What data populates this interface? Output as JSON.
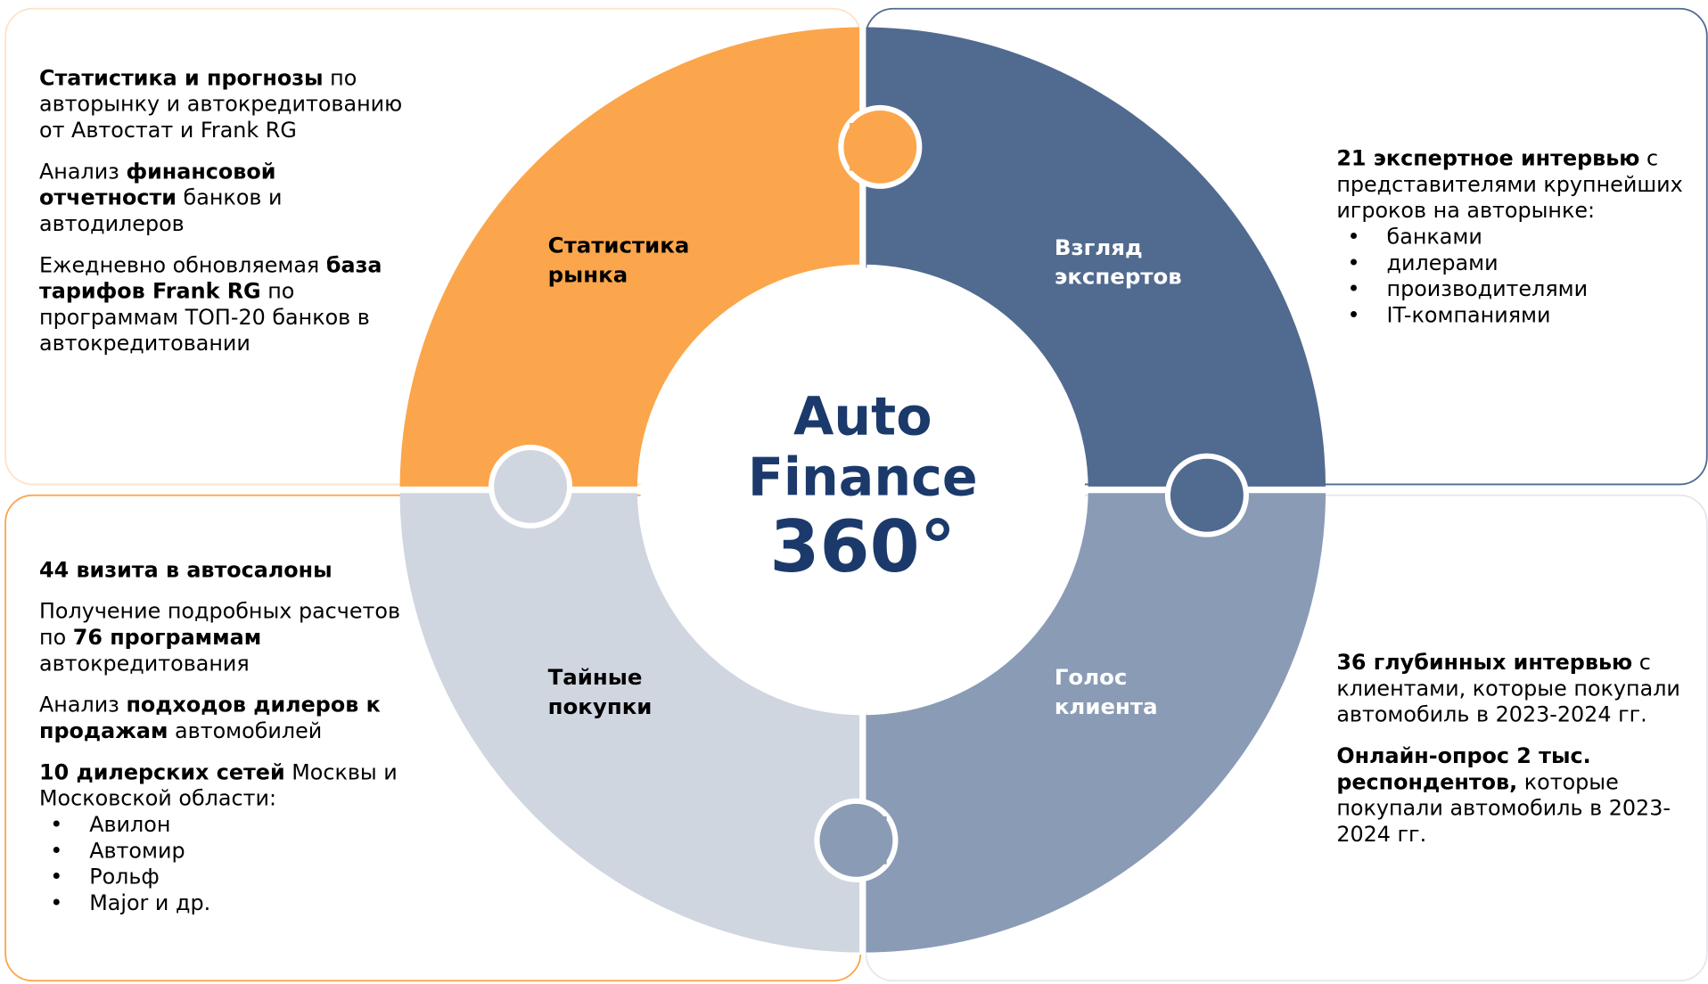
{
  "center": {
    "lines": [
      "Auto",
      "Finance",
      "360°"
    ]
  },
  "quadrants": [
    {
      "label": [
        "Статистика",
        "рынка"
      ],
      "color": "#fba64c",
      "text_color": "#000000"
    },
    {
      "label": [
        "Взгляд",
        "экспертов"
      ],
      "color": "#516a8f",
      "text_color": "#ffffff"
    },
    {
      "label": [
        "Тайные",
        "покупки"
      ],
      "color": "#d0d6e0",
      "text_color": "#000000"
    },
    {
      "label": [
        "Голос",
        "клиента"
      ],
      "color": "#8a9bb5",
      "text_color": "#ffffff"
    }
  ],
  "panels": [
    {
      "paragraphs": [
        [
          {
            "t": "Статистика и прогнозы",
            "b": true
          },
          {
            "t": " по авторынку и автокредитованию от Автостат и Frank RG"
          }
        ],
        [
          {
            "t": "Анализ "
          },
          {
            "t": "финансовой отчетности",
            "b": true
          },
          {
            "t": " банков и автодилеров"
          }
        ],
        [
          {
            "t": "Ежедневно обновляемая "
          },
          {
            "t": "база тарифов Frank RG",
            "b": true
          },
          {
            "t": " по программам ТОП-20 банков в автокредитовании"
          }
        ]
      ]
    },
    {
      "paragraphs": [
        [
          {
            "t": "21 экспертное интервью",
            "b": true
          },
          {
            "t": " с представителями крупнейших игроков на авторынке:"
          }
        ]
      ],
      "bullets": [
        "банками",
        "дилерами",
        "производителями",
        "IT-компаниями"
      ]
    },
    {
      "paragraphs": [
        [
          {
            "t": "44 визита в автосалоны",
            "b": true
          }
        ],
        [
          {
            "t": "Получение подробных расчетов по "
          },
          {
            "t": "76 программам",
            "b": true
          },
          {
            "t": " автокредитования"
          }
        ],
        [
          {
            "t": "Анализ "
          },
          {
            "t": "подходов дилеров к продажам",
            "b": true
          },
          {
            "t": " автомобилей"
          }
        ],
        [
          {
            "t": "10 дилерских сетей",
            "b": true
          },
          {
            "t": " Москвы и Московской области:"
          }
        ]
      ],
      "bullets": [
        "Авилон",
        "Автомир",
        "Рольф",
        "Major и др."
      ]
    },
    {
      "paragraphs": [
        [
          {
            "t": "36 глубинных интервью",
            "b": true
          },
          {
            "t": " с клиентами, которые покупали автомобиль в 2023-2024 гг."
          }
        ],
        [
          {
            "t": "Онлайн-опрос 2 тыс. респондентов,",
            "b": true
          },
          {
            "t": " которые покупали автомобиль в 2023-2024 гг."
          }
        ]
      ]
    }
  ]
}
